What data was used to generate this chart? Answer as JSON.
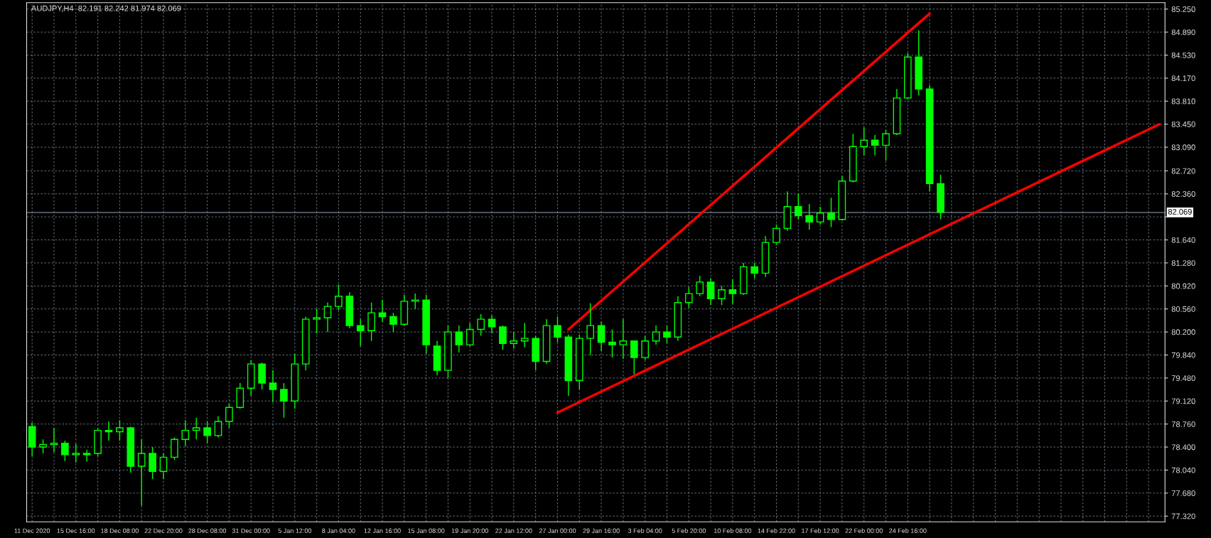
{
  "chart_data": {
    "type": "candlestick",
    "title": "AUDJPY,H4  82.191 82.242 81.974 82.069",
    "color": "#00ff00",
    "categories": [
      "11 Dec 2020",
      null,
      null,
      null,
      "15 Dec 16:00",
      null,
      null,
      null,
      "18 Dec 08:00",
      null,
      null,
      null,
      "22 Dec 20:00",
      null,
      null,
      null,
      "28 Dec 08:00",
      null,
      null,
      null,
      "31 Dec 00:00",
      null,
      null,
      null,
      "5 Jan 12:00",
      null,
      null,
      null,
      "8 Jan 04:00",
      null,
      null,
      null,
      "12 Jan 16:00",
      null,
      null,
      null,
      "15 Jan 08:00",
      null,
      null,
      null,
      "19 Jan 20:00",
      null,
      null,
      null,
      "22 Jan 12:00",
      null,
      null,
      null,
      "27 Jan 00:00",
      null,
      null,
      null,
      "29 Jan 16:00",
      null,
      null,
      null,
      "3 Feb 04:00",
      null,
      null,
      null,
      "5 Feb 20:00",
      null,
      null,
      null,
      "10 Feb 08:00",
      null,
      null,
      null,
      "14 Feb 22:00",
      null,
      null,
      null,
      "17 Feb 12:00",
      null,
      null,
      null,
      "22 Feb 00:00",
      null,
      null,
      null,
      "24 Feb 16:00",
      null,
      null,
      null,
      null,
      null,
      null,
      null,
      null,
      null,
      null,
      null,
      null,
      null,
      null,
      null,
      null,
      null,
      null,
      null,
      null,
      null,
      null,
      null
    ],
    "ohlc": [
      [
        78.72,
        78.78,
        78.26,
        78.4
      ],
      [
        78.4,
        78.52,
        78.3,
        78.44
      ],
      [
        78.44,
        78.7,
        78.32,
        78.46
      ],
      [
        78.46,
        78.5,
        78.18,
        78.28
      ],
      [
        78.28,
        78.45,
        78.16,
        78.3
      ],
      [
        78.3,
        78.36,
        78.17,
        78.28
      ],
      [
        78.3,
        78.7,
        78.26,
        78.66
      ],
      [
        78.66,
        78.8,
        78.5,
        78.64
      ],
      [
        78.64,
        78.82,
        78.5,
        78.7
      ],
      [
        78.7,
        78.72,
        78.0,
        78.1
      ],
      [
        78.1,
        78.52,
        77.48,
        78.3
      ],
      [
        78.3,
        78.4,
        77.9,
        78.02
      ],
      [
        78.02,
        78.3,
        77.9,
        78.24
      ],
      [
        78.24,
        78.55,
        78.2,
        78.52
      ],
      [
        78.52,
        78.82,
        78.42,
        78.66
      ],
      [
        78.66,
        78.86,
        78.52,
        78.7
      ],
      [
        78.7,
        78.8,
        78.46,
        78.58
      ],
      [
        78.58,
        78.88,
        78.55,
        78.8
      ],
      [
        78.8,
        79.08,
        78.7,
        79.02
      ],
      [
        79.02,
        79.4,
        79.0,
        79.32
      ],
      [
        79.32,
        79.76,
        79.2,
        79.7
      ],
      [
        79.7,
        79.72,
        79.3,
        79.4
      ],
      [
        79.4,
        79.6,
        79.1,
        79.3
      ],
      [
        79.3,
        79.4,
        78.86,
        79.12
      ],
      [
        79.12,
        79.86,
        79.0,
        79.7
      ],
      [
        79.7,
        80.44,
        79.6,
        80.4
      ],
      [
        80.4,
        80.56,
        80.18,
        80.42
      ],
      [
        80.42,
        80.66,
        80.2,
        80.6
      ],
      [
        80.6,
        80.94,
        80.54,
        80.76
      ],
      [
        80.76,
        80.82,
        80.26,
        80.3
      ],
      [
        80.3,
        80.4,
        79.98,
        80.22
      ],
      [
        80.22,
        80.66,
        80.06,
        80.5
      ],
      [
        80.5,
        80.7,
        80.36,
        80.44
      ],
      [
        80.44,
        80.5,
        80.2,
        80.32
      ],
      [
        80.32,
        80.78,
        80.3,
        80.68
      ],
      [
        80.68,
        80.8,
        80.56,
        80.7
      ],
      [
        80.7,
        80.78,
        79.86,
        80.0
      ],
      [
        79.98,
        80.06,
        79.52,
        79.6
      ],
      [
        79.6,
        80.3,
        79.48,
        80.2
      ],
      [
        80.2,
        80.3,
        79.88,
        80.0
      ],
      [
        80.0,
        80.34,
        79.98,
        80.24
      ],
      [
        80.24,
        80.48,
        80.14,
        80.4
      ],
      [
        80.4,
        80.46,
        80.18,
        80.28
      ],
      [
        80.28,
        80.3,
        79.92,
        80.02
      ],
      [
        80.02,
        80.2,
        79.94,
        80.06
      ],
      [
        80.06,
        80.34,
        79.96,
        80.1
      ],
      [
        80.1,
        80.14,
        79.6,
        79.74
      ],
      [
        79.74,
        80.4,
        79.7,
        80.3
      ],
      [
        80.3,
        80.44,
        80.04,
        80.12
      ],
      [
        80.12,
        80.16,
        79.2,
        79.44
      ],
      [
        79.44,
        80.16,
        79.3,
        80.1
      ],
      [
        80.1,
        80.65,
        79.84,
        80.3
      ],
      [
        80.3,
        80.36,
        79.9,
        80.04
      ],
      [
        80.04,
        80.24,
        79.8,
        80.0
      ],
      [
        80.0,
        80.4,
        79.78,
        80.06
      ],
      [
        80.06,
        80.06,
        79.54,
        79.8
      ],
      [
        79.8,
        80.14,
        79.76,
        80.06
      ],
      [
        80.06,
        80.3,
        80.0,
        80.2
      ],
      [
        80.2,
        80.3,
        80.02,
        80.12
      ],
      [
        80.12,
        80.76,
        80.06,
        80.66
      ],
      [
        80.66,
        80.9,
        80.58,
        80.8
      ],
      [
        80.8,
        81.08,
        80.76,
        80.98
      ],
      [
        80.98,
        81.04,
        80.62,
        80.72
      ],
      [
        80.72,
        80.92,
        80.62,
        80.86
      ],
      [
        80.86,
        81.02,
        80.64,
        80.8
      ],
      [
        80.8,
        81.28,
        80.78,
        81.22
      ],
      [
        81.22,
        81.28,
        81.04,
        81.12
      ],
      [
        81.12,
        81.7,
        81.06,
        81.6
      ],
      [
        81.6,
        81.88,
        81.56,
        81.82
      ],
      [
        81.82,
        82.4,
        81.78,
        82.16
      ],
      [
        82.16,
        82.36,
        81.96,
        82.02
      ],
      [
        82.02,
        82.2,
        81.8,
        81.92
      ],
      [
        81.92,
        82.16,
        81.88,
        82.06
      ],
      [
        82.06,
        82.3,
        81.84,
        81.96
      ],
      [
        81.96,
        82.64,
        81.94,
        82.56
      ],
      [
        82.56,
        83.3,
        82.54,
        83.1
      ],
      [
        83.1,
        83.4,
        82.96,
        83.2
      ],
      [
        83.2,
        83.28,
        82.96,
        83.12
      ],
      [
        83.12,
        83.36,
        82.88,
        83.3
      ],
      [
        83.3,
        84.0,
        83.28,
        83.86
      ],
      [
        83.86,
        84.56,
        83.84,
        84.5
      ],
      [
        84.5,
        84.92,
        83.9,
        84.0
      ],
      [
        84.0,
        84.06,
        82.4,
        82.52
      ],
      [
        82.52,
        82.66,
        81.96,
        82.07
      ],
      null,
      null,
      null,
      null,
      null,
      null,
      null,
      null,
      null,
      null,
      null,
      null,
      null,
      null,
      null,
      null,
      null,
      null,
      null,
      null
    ],
    "series": [
      {
        "type": "line",
        "color": "#ff0000",
        "values": [
          null,
          null,
          null,
          null,
          null,
          null,
          null,
          null,
          null,
          null,
          null,
          null,
          null,
          null,
          null,
          null,
          null,
          null,
          null,
          null,
          null,
          null,
          null,
          null,
          null,
          null,
          null,
          null,
          null,
          null,
          null,
          null,
          null,
          null,
          null,
          null,
          null,
          null,
          null,
          null,
          null,
          null,
          null,
          null,
          null,
          null,
          null,
          null,
          null,
          80.24,
          null,
          null,
          null,
          null,
          null,
          null,
          null,
          null,
          null,
          null,
          null,
          null,
          null,
          null,
          null,
          null,
          null,
          null,
          null,
          null,
          null,
          null,
          null,
          null,
          null,
          null,
          null,
          null,
          null,
          null,
          null,
          null,
          85.18,
          null,
          null,
          null,
          null,
          null,
          null,
          null,
          null,
          null,
          null,
          null,
          null,
          null,
          null,
          null,
          null,
          null,
          null,
          null,
          null,
          null
        ]
      },
      {
        "type": "line",
        "color": "#ff0000",
        "values": [
          null,
          null,
          null,
          null,
          null,
          null,
          null,
          null,
          null,
          null,
          null,
          null,
          null,
          null,
          null,
          null,
          null,
          null,
          null,
          null,
          null,
          null,
          null,
          null,
          null,
          null,
          null,
          null,
          null,
          null,
          null,
          null,
          null,
          null,
          null,
          null,
          null,
          null,
          null,
          null,
          null,
          null,
          null,
          null,
          null,
          null,
          null,
          null,
          78.94,
          null,
          null,
          null,
          null,
          null,
          null,
          null,
          null,
          null,
          null,
          null,
          null,
          null,
          null,
          null,
          null,
          null,
          null,
          null,
          null,
          null,
          null,
          null,
          null,
          null,
          null,
          null,
          null,
          null,
          null,
          null,
          null,
          null,
          null,
          null,
          null,
          null,
          null,
          null,
          null,
          null,
          null,
          null,
          null,
          null,
          null,
          null,
          null,
          null,
          null,
          null,
          null,
          null,
          null,
          83.45
        ]
      }
    ],
    "ylim": [
      77.23,
      85.35
    ],
    "yticks": [
      {
        "value": 77.32,
        "label": "77.320"
      },
      {
        "value": 77.68,
        "label": "77.680"
      },
      {
        "value": 78.04,
        "label": "78.040"
      },
      {
        "value": 78.4,
        "label": "78.400"
      },
      {
        "value": 78.76,
        "label": "78.760"
      },
      {
        "value": 79.12,
        "label": "79.120"
      },
      {
        "value": 79.48,
        "label": "79.480"
      },
      {
        "value": 79.84,
        "label": "79.840"
      },
      {
        "value": 80.2,
        "label": "80.200"
      },
      {
        "value": 80.56,
        "label": "80.560"
      },
      {
        "value": 80.92,
        "label": "80.920"
      },
      {
        "value": 81.28,
        "label": "81.280"
      },
      {
        "value": 81.64,
        "label": "81.640"
      },
      {
        "value": 82.0,
        "label": null
      },
      {
        "value": 82.36,
        "label": "82.360"
      },
      {
        "value": 82.72,
        "label": "82.720"
      },
      {
        "value": 83.09,
        "label": "83.090"
      },
      {
        "value": 83.45,
        "label": "83.450"
      },
      {
        "value": 83.81,
        "label": "83.810"
      },
      {
        "value": 84.17,
        "label": "84.170"
      },
      {
        "value": 84.53,
        "label": "84.530"
      },
      {
        "value": 84.89,
        "label": "84.890"
      },
      {
        "value": 85.25,
        "label": "85.250"
      }
    ],
    "ref_lines": [
      {
        "axis": "y",
        "value": 82.069,
        "label": "82.069",
        "color": "#8fa3b8"
      }
    ],
    "grid": true
  }
}
